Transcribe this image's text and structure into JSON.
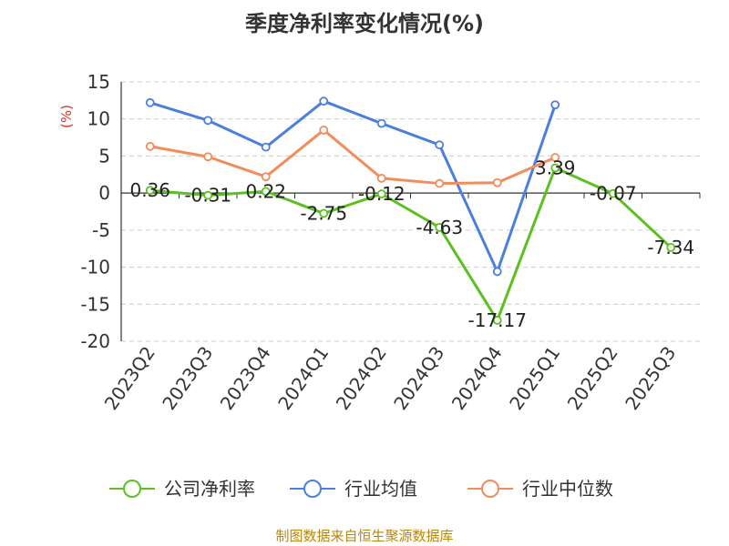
{
  "chart_data": {
    "type": "line",
    "title": "季度净利率变化情况(%)",
    "ylabel": "(%)",
    "categories": [
      "2023Q2",
      "2023Q3",
      "2023Q4",
      "2024Q1",
      "2024Q2",
      "2024Q3",
      "2024Q4",
      "2025Q1",
      "2025Q2",
      "2025Q3"
    ],
    "yticks": [
      "15",
      "10",
      "5",
      "0",
      "-5",
      "-10",
      "-15",
      "-20"
    ],
    "ylim": [
      -20,
      15
    ],
    "grid": true,
    "legend_position": "bottom",
    "series": [
      {
        "name": "公司净利率",
        "color": "#5cc021",
        "values": [
          0.36,
          -0.31,
          0.22,
          -2.75,
          -0.12,
          -4.63,
          -17.17,
          3.39,
          -0.07,
          -7.34
        ],
        "labels": [
          "0.36",
          "-0.31",
          "0.22",
          "-2.75",
          "-0.12",
          "-4.63",
          "-17.17",
          "3.39",
          "-0.07",
          "-7.34"
        ]
      },
      {
        "name": "行业均值",
        "color": "#4a7fdc",
        "values": [
          12.2,
          9.8,
          6.2,
          12.4,
          9.4,
          6.5,
          -10.6,
          11.9,
          null,
          null
        ]
      },
      {
        "name": "行业中位数",
        "color": "#f28c5a",
        "values": [
          6.3,
          4.9,
          2.2,
          8.5,
          2.0,
          1.3,
          1.4,
          4.8,
          null,
          null
        ]
      }
    ]
  },
  "source": "制图数据来自恒生聚源数据库"
}
